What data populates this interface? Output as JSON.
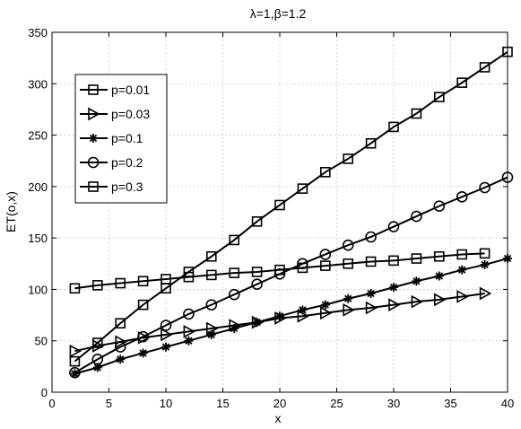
{
  "chart_data": {
    "type": "line",
    "title": "λ=1,β=1.2",
    "xlabel": "x",
    "ylabel": "ET(o,x)",
    "xlim": [
      0,
      40
    ],
    "ylim": [
      0,
      350
    ],
    "xticks": [
      0,
      5,
      10,
      15,
      20,
      25,
      30,
      35,
      40
    ],
    "yticks": [
      0,
      50,
      100,
      150,
      200,
      250,
      300,
      350
    ],
    "grid": true,
    "legend_position": "upper-left",
    "series": [
      {
        "name": "p=0.01",
        "marker": "square",
        "x": [
          2,
          4,
          6,
          8,
          10,
          12,
          14,
          16,
          18,
          20,
          22,
          24,
          26,
          28,
          30,
          32,
          34,
          36,
          38,
          40
        ],
        "y": [
          30,
          48,
          67,
          85,
          101,
          117,
          132,
          148,
          166,
          182,
          198,
          214,
          227,
          242,
          258,
          271,
          287,
          301,
          316,
          331
        ]
      },
      {
        "name": "p=0.03",
        "marker": "triangle-right",
        "x": [
          2,
          4,
          6,
          8,
          10,
          12,
          14,
          16,
          18,
          20,
          22,
          24,
          26,
          28,
          30,
          32,
          34,
          36,
          38
        ],
        "y": [
          40,
          45,
          49,
          53,
          56,
          59,
          62,
          65,
          68,
          72,
          74,
          77,
          80,
          82,
          85,
          88,
          90,
          93,
          96
        ]
      },
      {
        "name": "p=0.1",
        "marker": "star",
        "x": [
          2,
          4,
          6,
          8,
          10,
          12,
          14,
          16,
          18,
          20,
          22,
          24,
          26,
          28,
          30,
          32,
          34,
          36,
          38,
          40
        ],
        "y": [
          18,
          24,
          32,
          38,
          44,
          50,
          56,
          62,
          68,
          74,
          80,
          85,
          91,
          96,
          102,
          108,
          113,
          119,
          124,
          130
        ]
      },
      {
        "name": "p=0.2",
        "marker": "circle",
        "x": [
          2,
          4,
          6,
          8,
          10,
          12,
          14,
          16,
          18,
          20,
          22,
          24,
          26,
          28,
          30,
          32,
          34,
          36,
          38,
          40
        ],
        "y": [
          19,
          32,
          44,
          54,
          65,
          76,
          85,
          95,
          105,
          115,
          125,
          134,
          143,
          151,
          161,
          171,
          181,
          190,
          199,
          209
        ]
      },
      {
        "name": "p=0.3",
        "marker": "square",
        "x": [
          2,
          4,
          6,
          8,
          10,
          12,
          14,
          16,
          18,
          20,
          22,
          24,
          26,
          28,
          30,
          32,
          34,
          36,
          38
        ],
        "y": [
          101,
          104,
          106,
          108,
          110,
          112,
          114,
          116,
          117,
          119,
          121,
          123,
          125,
          127,
          128,
          130,
          132,
          134,
          135
        ]
      }
    ]
  }
}
